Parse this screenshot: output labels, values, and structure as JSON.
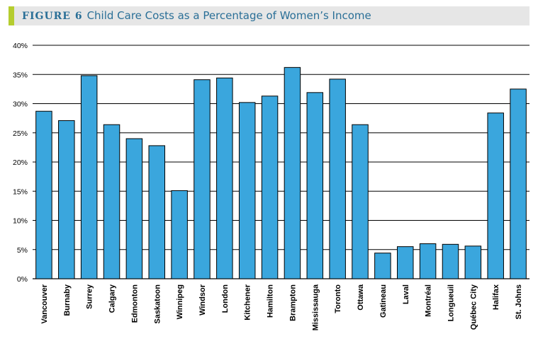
{
  "figure": {
    "label": "FIGURE 6",
    "title": "Child Care Costs as a Percentage of Women’s Income"
  },
  "colors": {
    "bar": "#3aa6dd",
    "accent": "#b5cd2f",
    "title": "#2a6f97"
  },
  "chart_data": {
    "type": "bar",
    "title": "Child Care Costs as a Percentage of Women’s Income",
    "categories": [
      "Vancouver",
      "Burnaby",
      "Surrey",
      "Calgary",
      "Edmonton",
      "Saskatoon",
      "Winnipeg",
      "Windsor",
      "London",
      "Kitchener",
      "Hamilton",
      "Brampton",
      "Mississauga",
      "Toronto",
      "Ottawa",
      "Gatineau",
      "Laval",
      "Montréal",
      "Longueuil",
      "Québec City",
      "Halifax",
      "St. Johns"
    ],
    "values": [
      28.7,
      27.1,
      34.8,
      26.4,
      24.0,
      22.8,
      15.1,
      34.1,
      34.4,
      30.2,
      31.3,
      36.2,
      31.9,
      34.2,
      26.4,
      4.4,
      5.5,
      6.0,
      5.9,
      5.6,
      28.4,
      32.5
    ],
    "yticks": [
      "0%",
      "5%",
      "10%",
      "15%",
      "20%",
      "25%",
      "30%",
      "35%",
      "40%"
    ],
    "ylim": [
      0,
      40
    ],
    "xlabel": "",
    "ylabel": "",
    "grid": true
  }
}
